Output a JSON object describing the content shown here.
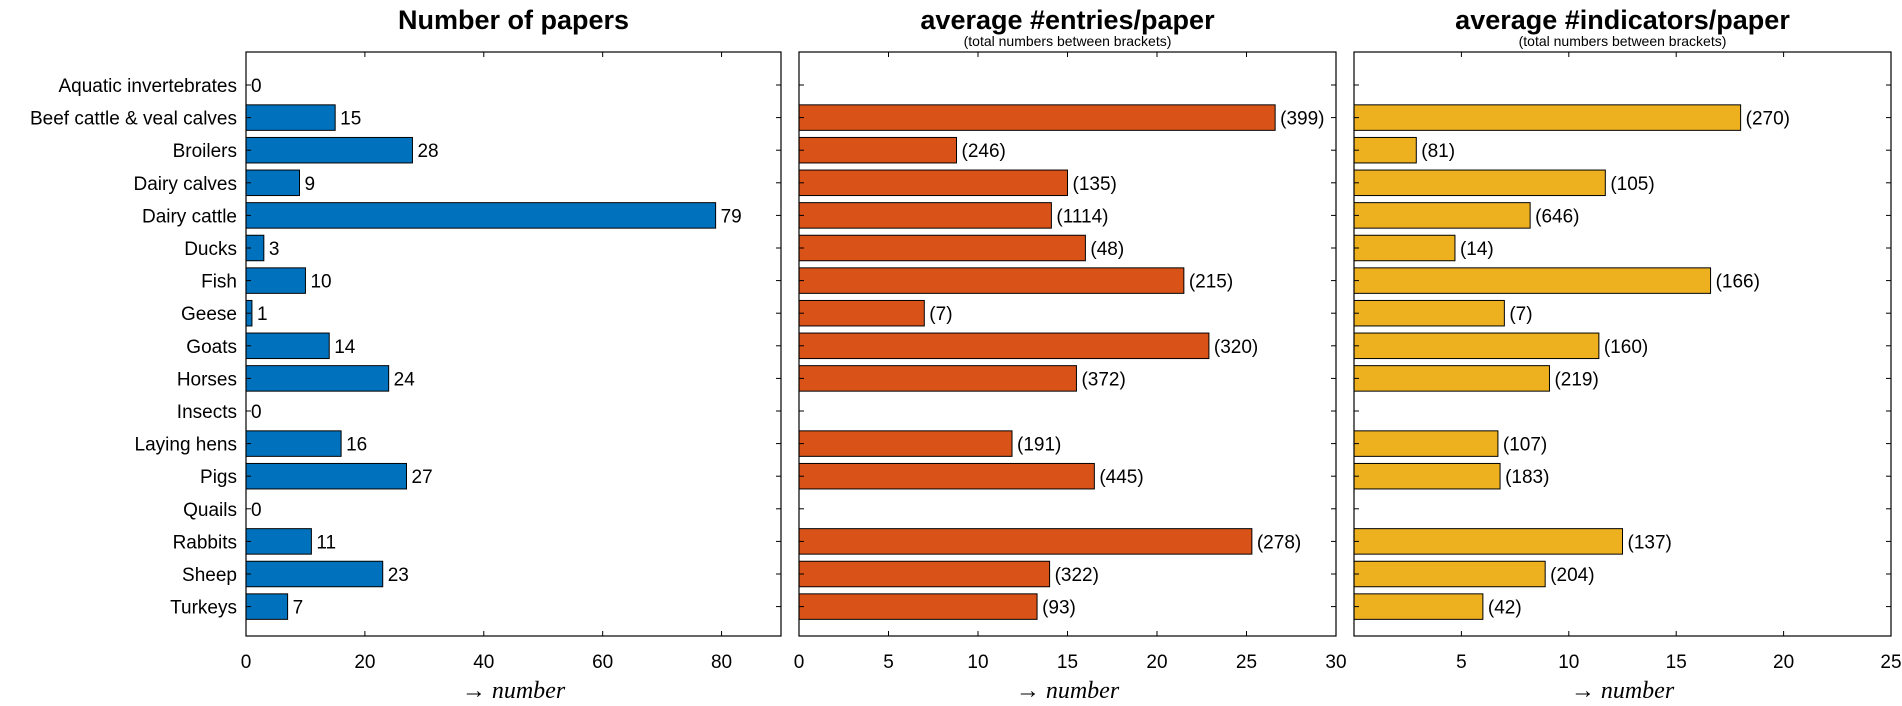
{
  "chart_data": [
    {
      "type": "bar",
      "orientation": "horizontal",
      "title": "Number of papers",
      "subtitle": "",
      "xlabel": "→ number",
      "xlim": [
        0,
        90
      ],
      "xticks": [
        0,
        20,
        40,
        60,
        80
      ],
      "color": "#0072BD",
      "categories": [
        "Aquatic invertebrates",
        "Beef cattle & veal calves",
        "Broilers",
        "Dairy calves",
        "Dairy cattle",
        "Ducks",
        "Fish",
        "Geese",
        "Goats",
        "Horses",
        "Insects",
        "Laying hens",
        "Pigs",
        "Quails",
        "Rabbits",
        "Sheep",
        "Turkeys"
      ],
      "values": [
        0,
        15,
        28,
        9,
        79,
        3,
        10,
        1,
        14,
        24,
        0,
        16,
        27,
        0,
        11,
        23,
        7
      ],
      "labels": [
        "0",
        "15",
        "28",
        "9",
        "79",
        "3",
        "10",
        "1",
        "14",
        "24",
        "0",
        "16",
        "27",
        "0",
        "11",
        "23",
        "7"
      ]
    },
    {
      "type": "bar",
      "orientation": "horizontal",
      "title": "average #entries/paper",
      "subtitle": "(total numbers between brackets)",
      "xlabel": "→ number",
      "xlim": [
        0,
        30
      ],
      "xticks": [
        0,
        5,
        10,
        15,
        20,
        25,
        30
      ],
      "color": "#D95319",
      "categories": [
        "Aquatic invertebrates",
        "Beef cattle & veal calves",
        "Broilers",
        "Dairy calves",
        "Dairy cattle",
        "Ducks",
        "Fish",
        "Geese",
        "Goats",
        "Horses",
        "Insects",
        "Laying hens",
        "Pigs",
        "Quails",
        "Rabbits",
        "Sheep",
        "Turkeys"
      ],
      "values": [
        0,
        26.6,
        8.8,
        15.0,
        14.1,
        16.0,
        21.5,
        7.0,
        22.9,
        15.5,
        0,
        11.9,
        16.5,
        0,
        25.3,
        14.0,
        13.3
      ],
      "labels": [
        "",
        "(399)",
        "(246)",
        "(135)",
        "(1114)",
        "(48)",
        "(215)",
        "(7)",
        "(320)",
        "(372)",
        "",
        "(191)",
        "(445)",
        "",
        "(278)",
        "(322)",
        "(93)"
      ]
    },
    {
      "type": "bar",
      "orientation": "horizontal",
      "title": "average #indicators/paper",
      "subtitle": "(total numbers between brackets)",
      "xlabel": "→ number",
      "xlim": [
        0,
        25
      ],
      "xticks": [
        0,
        5,
        10,
        15,
        20,
        25
      ],
      "xticklabels": [
        "",
        "5",
        "10",
        "15",
        "20",
        "25"
      ],
      "color": "#EDB120",
      "categories": [
        "Aquatic invertebrates",
        "Beef cattle & veal calves",
        "Broilers",
        "Dairy calves",
        "Dairy cattle",
        "Ducks",
        "Fish",
        "Geese",
        "Goats",
        "Horses",
        "Insects",
        "Laying hens",
        "Pigs",
        "Quails",
        "Rabbits",
        "Sheep",
        "Turkeys"
      ],
      "values": [
        0,
        18.0,
        2.9,
        11.7,
        8.2,
        4.7,
        16.6,
        7.0,
        11.4,
        9.1,
        0,
        6.7,
        6.8,
        0,
        12.5,
        8.9,
        6.0
      ],
      "labels": [
        "",
        "(270)",
        "(81)",
        "(105)",
        "(646)",
        "(14)",
        "(166)",
        "(7)",
        "(160)",
        "(219)",
        "",
        "(107)",
        "(183)",
        "",
        "(137)",
        "(204)",
        "(42)"
      ]
    }
  ]
}
